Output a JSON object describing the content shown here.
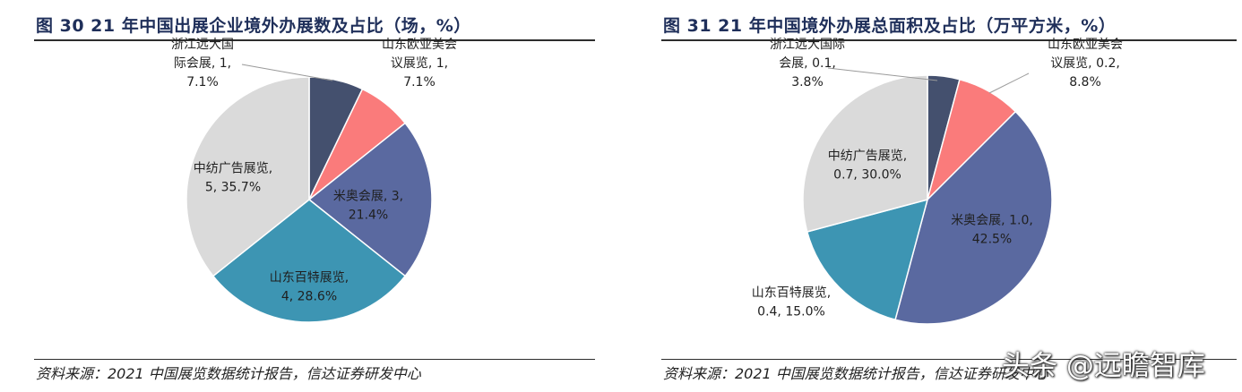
{
  "chart_data": [
    {
      "type": "pie",
      "title": "图 30  21 年中国出展企业境外办展数及占比（场，%）",
      "slices": [
        {
          "name": "浙江远大国际会展",
          "value": 1,
          "percent": 7.1,
          "color": "#44506e",
          "label_lines": [
            "浙江远大国",
            "际会展, 1,",
            "7.1%"
          ]
        },
        {
          "name": "山东欧亚美会议展览",
          "value": 1,
          "percent": 7.1,
          "color": "#fa7b7b",
          "label_lines": [
            "山东欧亚美会",
            "议展览, 1,",
            "7.1%"
          ]
        },
        {
          "name": "米奥会展",
          "value": 3,
          "percent": 21.4,
          "color": "#5a69a0",
          "label_lines": [
            "米奥会展, 3,",
            "21.4%"
          ]
        },
        {
          "name": "山东百特展览",
          "value": 4,
          "percent": 28.6,
          "color": "#3d95b3",
          "label_lines": [
            "山东百特展览,",
            "4, 28.6%"
          ]
        },
        {
          "name": "中纺广告展览",
          "value": 5,
          "percent": 35.7,
          "color": "#dadada",
          "label_lines": [
            "中纺广告展览,",
            "5, 35.7%"
          ]
        }
      ],
      "source": "资料来源：2021 中国展览数据统计报告，信达证券研发中心"
    },
    {
      "type": "pie",
      "title": "图 31  21 年中国境外办展总面积及占比（万平方米，%）",
      "slices": [
        {
          "name": "浙江远大国际会展",
          "value": 0.1,
          "percent": 3.8,
          "color": "#44506e",
          "label_lines": [
            "浙江远大国际",
            "会展, 0.1,",
            "3.8%"
          ]
        },
        {
          "name": "山东欧亚美会议展览",
          "value": 0.2,
          "percent": 8.8,
          "color": "#fa7b7b",
          "label_lines": [
            "山东欧亚美会",
            "议展览, 0.2,",
            "8.8%"
          ]
        },
        {
          "name": "米奥会展",
          "value": 1.0,
          "percent": 42.5,
          "color": "#5a69a0",
          "label_lines": [
            "米奥会展, 1.0,",
            "42.5%"
          ]
        },
        {
          "name": "山东百特展览",
          "value": 0.4,
          "percent": 15.0,
          "color": "#3d95b3",
          "label_lines": [
            "山东百特展览,",
            "0.4, 15.0%"
          ]
        },
        {
          "name": "中纺广告展览",
          "value": 0.7,
          "percent": 30.0,
          "color": "#dadada",
          "label_lines": [
            "中纺广告展览,",
            "0.7, 30.0%"
          ]
        }
      ],
      "source": "资料来源：2021 中国展览数据统计报告，信达证券研发中心"
    }
  ],
  "watermark": "头条 @远瞻智库"
}
